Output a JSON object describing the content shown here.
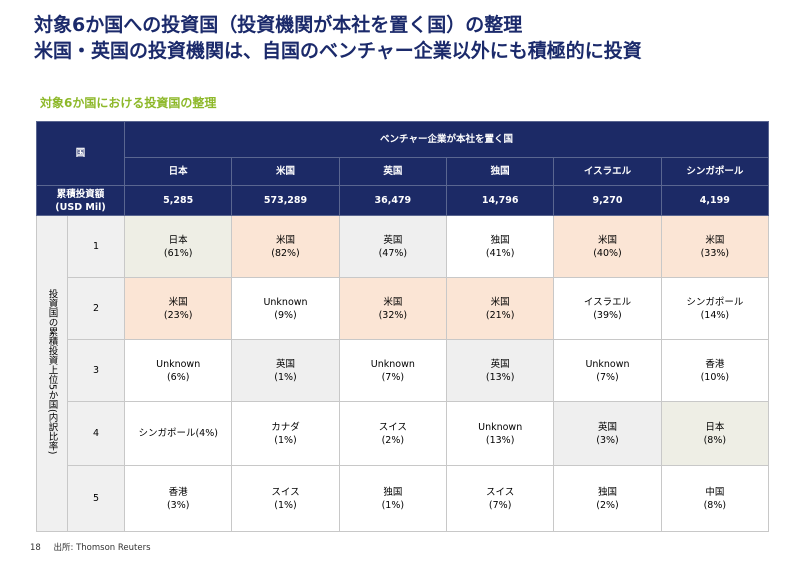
{
  "title": {
    "line1": "対象6か国への投資国（投資機関が本社を置く国）の整理",
    "line2": "米国・英国の投資機関は、自国のベンチャー企業以外にも積極的に投資"
  },
  "subtitle": "対象6か国における投資国の整理",
  "table": {
    "corner_label": "国",
    "group_header": "ベンチャー企業が本社を置く国",
    "countries": [
      "日本",
      "米国",
      "英国",
      "独国",
      "イスラエル",
      "シンガポール"
    ],
    "cumulative_label_line1": "累積投資額",
    "cumulative_label_line2": "(USD Mil)",
    "cumulative_values": [
      "5,285",
      "573,289",
      "36,479",
      "14,796",
      "9,270",
      "4,199"
    ],
    "side_label": "投資国の累積投資上位5か国(内訳比率)",
    "ranks": [
      {
        "rank": "1",
        "cells": [
          {
            "name": "日本",
            "pct": "(61%)",
            "color": "#eeeee5"
          },
          {
            "name": "米国",
            "pct": "(82%)",
            "color": "#fbe5d5"
          },
          {
            "name": "英国",
            "pct": "(47%)",
            "color": "#efefef"
          },
          {
            "name": "独国",
            "pct": "(41%)",
            "color": "#ffffff"
          },
          {
            "name": "米国",
            "pct": "(40%)",
            "color": "#fbe5d5"
          },
          {
            "name": "米国",
            "pct": "(33%)",
            "color": "#fbe5d5"
          }
        ]
      },
      {
        "rank": "2",
        "cells": [
          {
            "name": "米国",
            "pct": "(23%)",
            "color": "#fbe5d5"
          },
          {
            "name": "Unknown",
            "pct": "(9%)",
            "color": "#ffffff"
          },
          {
            "name": "米国",
            "pct": "(32%)",
            "color": "#fbe5d5"
          },
          {
            "name": "米国",
            "pct": "(21%)",
            "color": "#fbe5d5"
          },
          {
            "name": "イスラエル",
            "pct": "(39%)",
            "color": "#ffffff"
          },
          {
            "name": "シンガポール",
            "pct": "(14%)",
            "color": "#ffffff"
          }
        ]
      },
      {
        "rank": "3",
        "cells": [
          {
            "name": "Unknown",
            "pct": "(6%)",
            "color": "#ffffff"
          },
          {
            "name": "英国",
            "pct": "(1%)",
            "color": "#efefef"
          },
          {
            "name": "Unknown",
            "pct": "(7%)",
            "color": "#ffffff"
          },
          {
            "name": "英国",
            "pct": "(13%)",
            "color": "#efefef"
          },
          {
            "name": "Unknown",
            "pct": "(7%)",
            "color": "#ffffff"
          },
          {
            "name": "香港",
            "pct": "(10%)",
            "color": "#ffffff"
          }
        ]
      },
      {
        "rank": "4",
        "cells": [
          {
            "name": "シンガポール(4%)",
            "pct": "",
            "color": "#ffffff"
          },
          {
            "name": "カナダ",
            "pct": "(1%)",
            "color": "#ffffff"
          },
          {
            "name": "スイス",
            "pct": "(2%)",
            "color": "#ffffff"
          },
          {
            "name": "Unknown",
            "pct": "(13%)",
            "color": "#ffffff"
          },
          {
            "name": "英国",
            "pct": "(3%)",
            "color": "#efefef"
          },
          {
            "name": "日本",
            "pct": "(8%)",
            "color": "#eeeee5"
          }
        ]
      },
      {
        "rank": "5",
        "cells": [
          {
            "name": "香港",
            "pct": "(3%)",
            "color": "#ffffff"
          },
          {
            "name": "スイス",
            "pct": "(1%)",
            "color": "#ffffff"
          },
          {
            "name": "独国",
            "pct": "(1%)",
            "color": "#ffffff"
          },
          {
            "name": "スイス",
            "pct": "(7%)",
            "color": "#ffffff"
          },
          {
            "name": "独国",
            "pct": "(2%)",
            "color": "#ffffff"
          },
          {
            "name": "中国",
            "pct": "(8%)",
            "color": "#ffffff"
          }
        ]
      }
    ]
  },
  "footer": {
    "page_number": "18",
    "source": "出所: Thomson Reuters"
  },
  "colors": {
    "title": "#1b2a6b",
    "subtitle": "#8db829",
    "header_bg": "#1c2a66",
    "highlight_us": "#fbe5d5",
    "highlight_uk": "#efefef",
    "highlight_jp": "#eeeee5"
  }
}
